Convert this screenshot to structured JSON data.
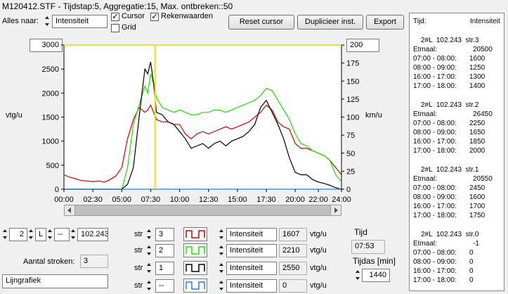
{
  "title": "M120412.STF - Tijdstap:5, Aggregatie:15, Max. ontbreken::50",
  "toolbar": {
    "alles_label": "Alles naar:",
    "alles_value": "Intensiteit",
    "cursor_label": "Cursor",
    "cursor_checked": true,
    "rekenwaarden_label": "Rekenwaarden",
    "rekenwaarden_checked": true,
    "grid_label": "Grid",
    "grid_checked": false,
    "reset_label": "Reset cursor",
    "dupliceer_label": "Duplicieer inst.",
    "export_label": "Export"
  },
  "chart_data": {
    "type": "line",
    "ylabel_left": "vtg/u",
    "ylabel_right": "km/u",
    "ylim_left": [
      0,
      3000
    ],
    "ylim_right": [
      0,
      200
    ],
    "yticks_left": [
      "0",
      "500",
      "1000",
      "1500",
      "2000",
      "2500",
      "3000"
    ],
    "yticks_right": [
      "0",
      "25",
      "50",
      "75",
      "100",
      "125",
      "150",
      "175",
      "200"
    ],
    "xlim": [
      0,
      24
    ],
    "xticks": [
      "00:00",
      "02:30",
      "05:00",
      "07:30",
      "10:00",
      "12:30",
      "15:00",
      "17:30",
      "20:00",
      "22:00",
      "24:00"
    ],
    "xtick_values": [
      0,
      2.5,
      5,
      7.5,
      10,
      12.5,
      15,
      17.5,
      20,
      22,
      24
    ],
    "ymax_left_box": "3000",
    "ymax_right_box": "200",
    "cursor_x": 7.883,
    "series": [
      {
        "color": "#d40000",
        "x": [
          0,
          0.5,
          1,
          1.5,
          2,
          2.5,
          3,
          3.5,
          4,
          4.5,
          5,
          5.5,
          6,
          6.5,
          7,
          7.25,
          7.5,
          7.75,
          8,
          8.5,
          9,
          9.5,
          10,
          10.5,
          11,
          11.5,
          12,
          12.5,
          13,
          13.5,
          14,
          14.5,
          15,
          15.5,
          16,
          16.5,
          17,
          17.5,
          18,
          18.5,
          19,
          19.5,
          20,
          20.5,
          21,
          21.5,
          22,
          22.5,
          23,
          23.5,
          24
        ],
        "y": [
          300,
          250,
          220,
          180,
          170,
          160,
          170,
          150,
          200,
          280,
          450,
          1050,
          1450,
          1700,
          1600,
          1650,
          1750,
          1600,
          1450,
          1400,
          1400,
          1350,
          1350,
          1150,
          1050,
          1150,
          1200,
          1150,
          1200,
          1250,
          1300,
          1250,
          1300,
          1350,
          1400,
          1500,
          1600,
          1750,
          1650,
          1400,
          1300,
          1250,
          950,
          850,
          850,
          800,
          750,
          700,
          600,
          450,
          300
        ]
      },
      {
        "color": "#22dd00",
        "x": [
          0,
          0.5,
          1,
          1.5,
          2,
          2.5,
          3,
          3.5,
          4,
          4.5,
          5,
          5.5,
          6,
          6.5,
          7,
          7.25,
          7.5,
          7.75,
          8,
          8.5,
          9,
          9.5,
          10,
          10.5,
          11,
          11.5,
          12,
          12.5,
          13,
          13.5,
          14,
          14.5,
          15,
          15.5,
          16,
          16.5,
          17,
          17.5,
          18,
          18.5,
          19,
          19.5,
          20,
          20.5,
          21,
          21.5,
          22,
          22.5,
          23,
          23.5,
          24
        ],
        "y": [
          0,
          0,
          0,
          0,
          0,
          0,
          0,
          0,
          0,
          0,
          0,
          450,
          1350,
          1750,
          2150,
          2000,
          2400,
          2200,
          1900,
          1700,
          1650,
          1600,
          1650,
          1600,
          1550,
          1550,
          1600,
          1600,
          1650,
          1650,
          1600,
          1650,
          1700,
          1750,
          1800,
          1850,
          1950,
          2100,
          2050,
          1850,
          1650,
          1450,
          1150,
          950,
          900,
          800,
          750,
          700,
          600,
          300,
          150
        ]
      },
      {
        "color": "#000000",
        "x": [
          0,
          0.5,
          1,
          1.5,
          2,
          2.5,
          3,
          3.5,
          4,
          4.5,
          5,
          5.5,
          6,
          6.5,
          7,
          7.25,
          7.5,
          7.75,
          8,
          8.5,
          9,
          9.5,
          10,
          10.5,
          11,
          11.5,
          12,
          12.5,
          13,
          13.5,
          14,
          14.5,
          15,
          15.5,
          16,
          16.5,
          17,
          17.5,
          18,
          18.5,
          19,
          19.5,
          20,
          20.5,
          21,
          21.5,
          22,
          22.5,
          23,
          23.5,
          24
        ],
        "y": [
          0,
          0,
          0,
          0,
          0,
          0,
          0,
          0,
          0,
          0,
          0,
          100,
          450,
          1500,
          2500,
          2400,
          2650,
          2200,
          1600,
          1550,
          1400,
          1350,
          1200,
          1050,
          850,
          900,
          950,
          850,
          950,
          1000,
          900,
          1000,
          1050,
          1100,
          1200,
          1350,
          1700,
          1850,
          1600,
          1350,
          1050,
          650,
          350,
          300,
          300,
          200,
          150,
          120,
          80,
          30,
          0
        ]
      },
      {
        "color": "#2b7de0",
        "x": [
          0,
          24
        ],
        "y": [
          0,
          0
        ]
      }
    ]
  },
  "legend_rows": [
    {
      "str_label": "str",
      "str_value": "3",
      "color": "#d40000",
      "type": "Intensiteit",
      "value": "1607",
      "unit": "vtg/u"
    },
    {
      "str_label": "str",
      "str_value": "2",
      "color": "#22dd00",
      "type": "Intensiteit",
      "value": "2210",
      "unit": "vtg/u"
    },
    {
      "str_label": "str",
      "str_value": "1",
      "color": "#000000",
      "type": "Intensiteit",
      "value": "2550",
      "unit": "vtg/u"
    },
    {
      "str_label": "str",
      "str_value": "--",
      "color": "#2b7de0",
      "type": "Intensiteit",
      "value": "0",
      "unit": "vtg/u"
    }
  ],
  "location": {
    "num": "2",
    "side": "L",
    "dash": "--",
    "km": "102.243"
  },
  "aantal_label": "Aantal stroken:",
  "aantal_value": "3",
  "grafiek_type": "Lijngrafiek",
  "tijd_label": "Tijd",
  "tijd_value": "07:53",
  "tijdas_label": "Tijdas [min]",
  "tijdas_value": "1440",
  "right_panel": {
    "header_left": "Tijd:",
    "header_right": "Intensiteit",
    "blocks": [
      {
        "id": "2#L  102.243  str.3",
        "etmaal": "Etmaal:",
        "etmaal_value": "20500",
        "rows": [
          [
            "07:00 - 08:00:",
            "1600"
          ],
          [
            "08:00 - 09:00:",
            "1250"
          ],
          [
            "16:00 - 17:00:",
            "1300"
          ],
          [
            "17:00 - 18:00:",
            "1400"
          ]
        ]
      },
      {
        "id": "2#L  102.243  str.2",
        "etmaal": "Etmaal:",
        "etmaal_value": "26450",
        "rows": [
          [
            "07:00 - 08:00:",
            "2250"
          ],
          [
            "08:00 - 09:00:",
            "1650"
          ],
          [
            "16:00 - 17:00:",
            "1850"
          ],
          [
            "17:00 - 18:00:",
            "2000"
          ]
        ]
      },
      {
        "id": "2#L  102.243  str.1",
        "etmaal": "Etmaal:",
        "etmaal_value": "20550",
        "rows": [
          [
            "07:00 - 08:00:",
            "2450"
          ],
          [
            "08:00 - 09:00:",
            "1600"
          ],
          [
            "16:00 - 17:00:",
            "1700"
          ],
          [
            "17:00 - 18:00:",
            "1750"
          ]
        ]
      },
      {
        "id": "2#L  102.243  str.0",
        "etmaal": "Etmaal:",
        "etmaal_value": "-1",
        "rows": [
          [
            "07:00 - 08:00:",
            "0"
          ],
          [
            "08:00 - 09:00:",
            "0"
          ],
          [
            "16:00 - 17:00:",
            "0"
          ],
          [
            "17:00 - 18:00:",
            "0"
          ]
        ]
      }
    ]
  }
}
